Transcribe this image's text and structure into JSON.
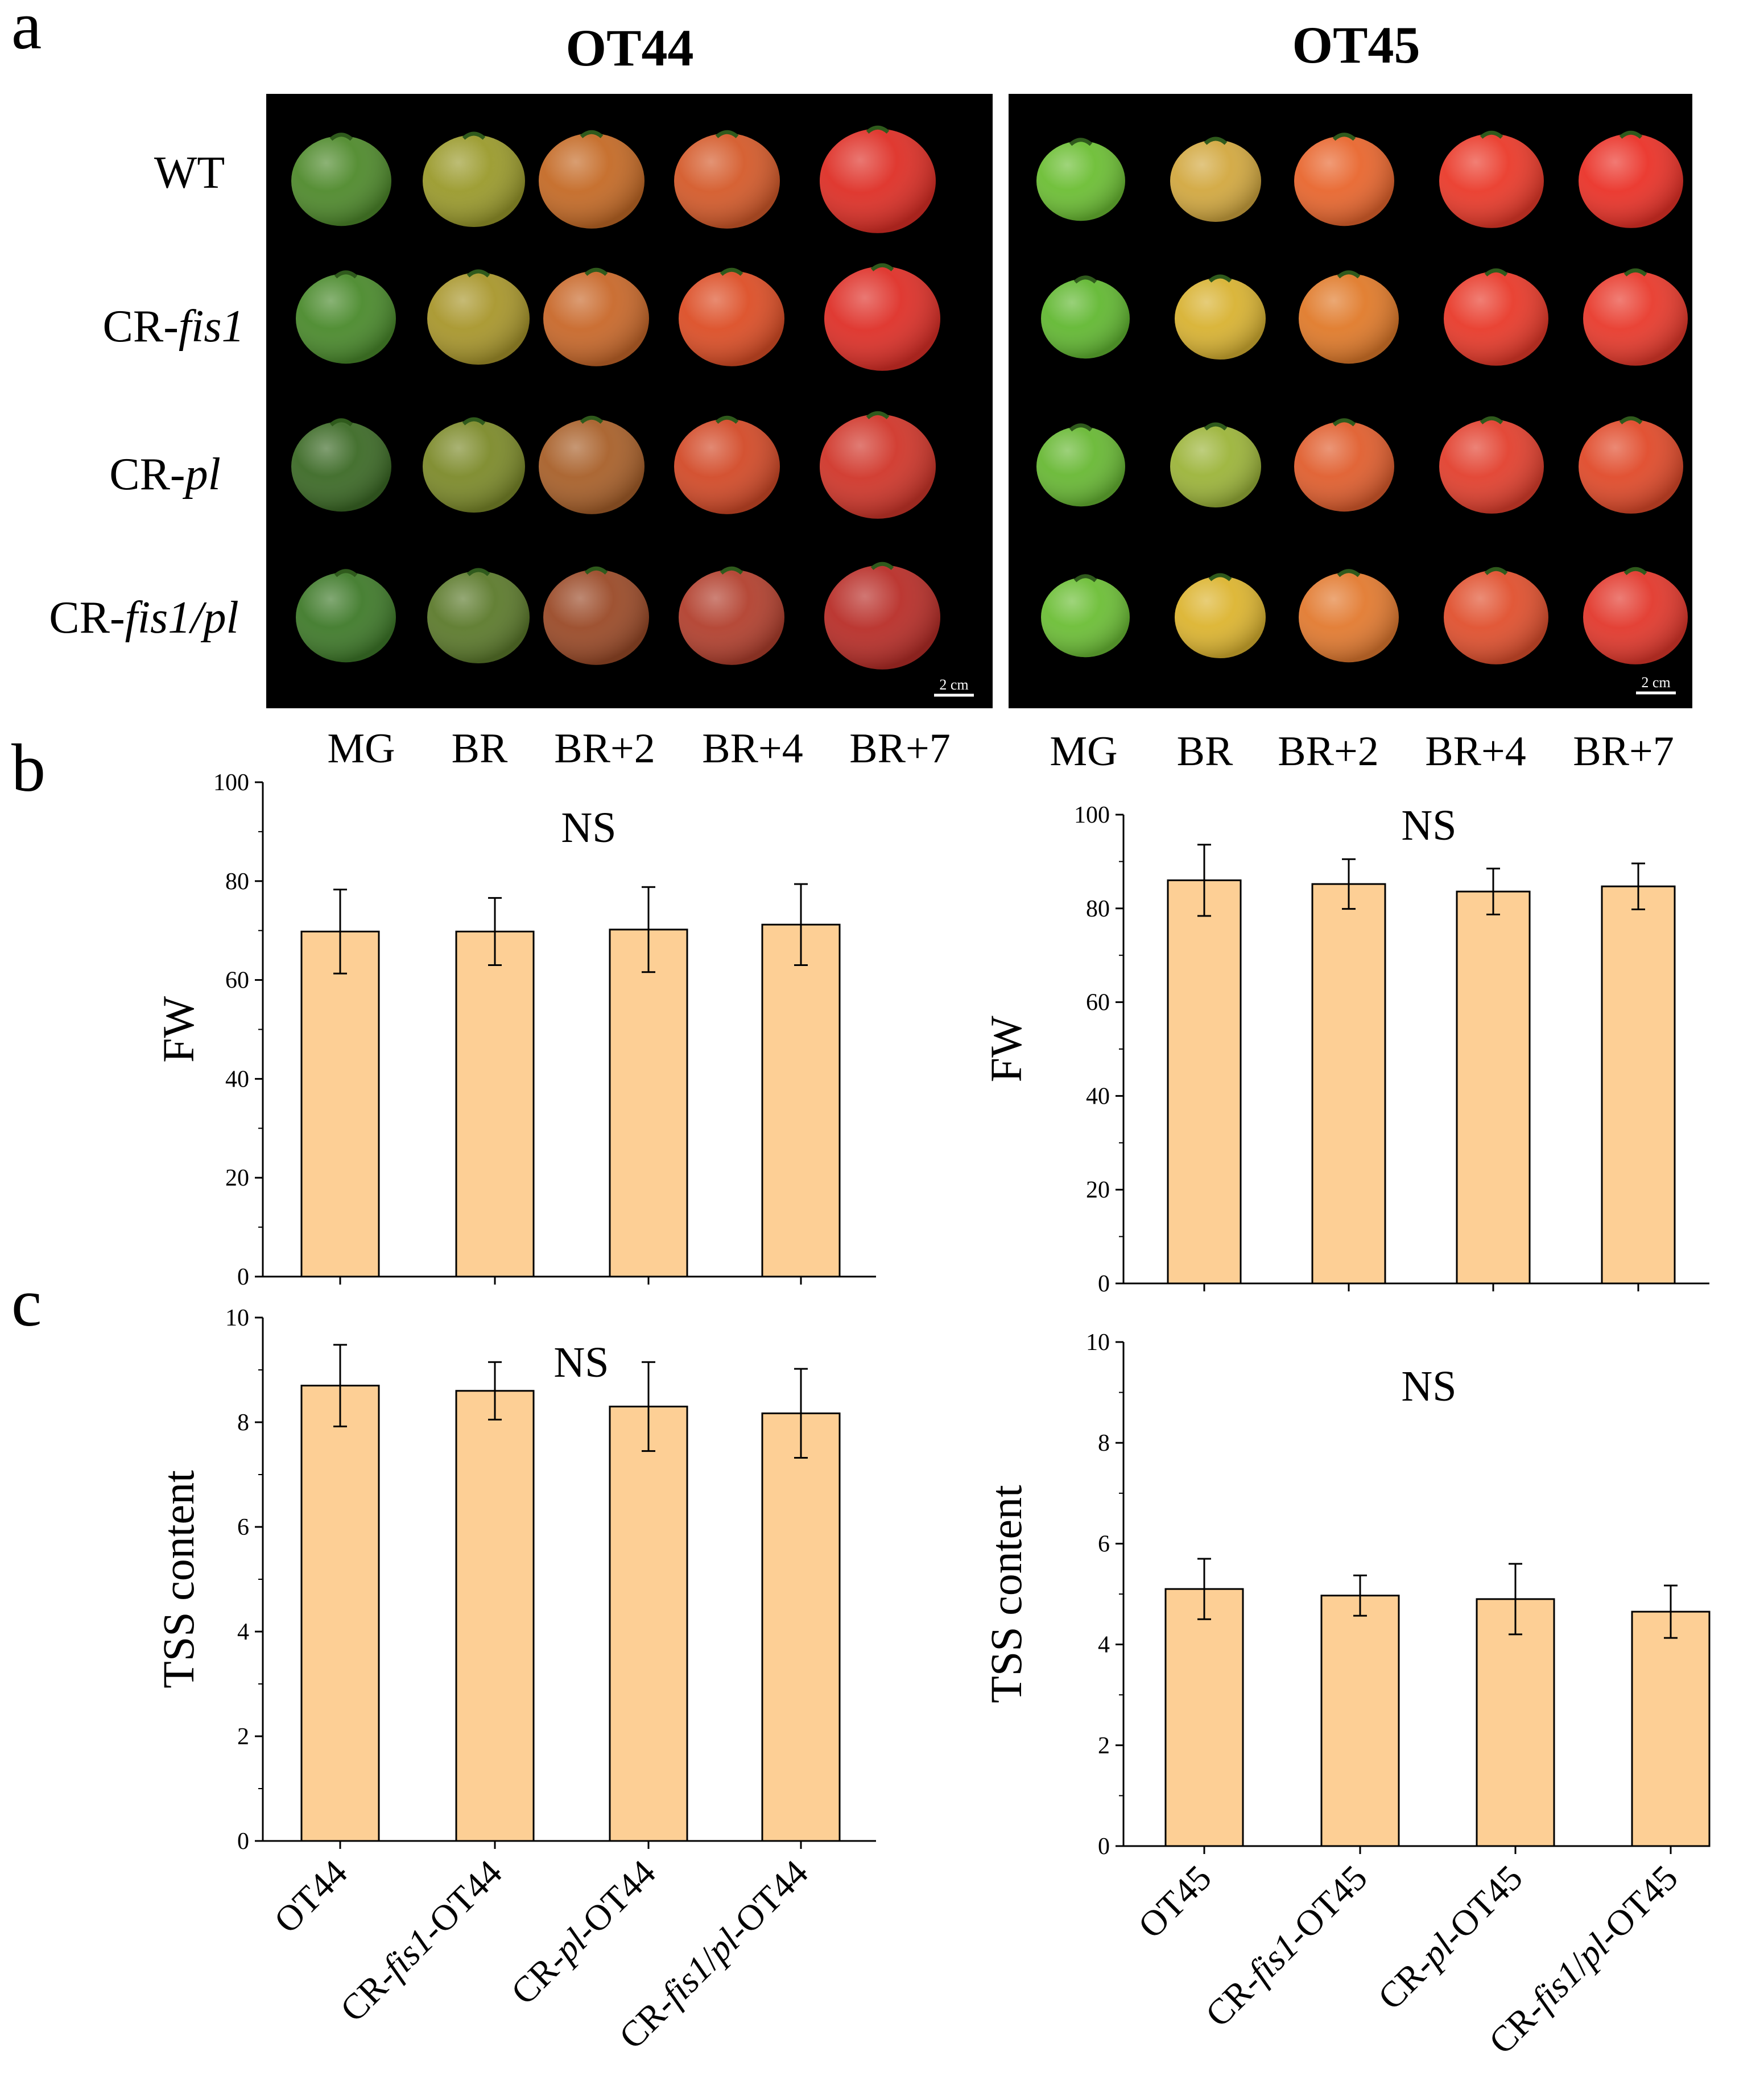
{
  "panels": {
    "a": "a",
    "b": "b",
    "c": "c"
  },
  "photo_panel": {
    "columns": [
      {
        "title": "OT44",
        "scale_bar": "2 cm"
      },
      {
        "title": "OT45",
        "scale_bar": "2 cm"
      }
    ],
    "row_labels": [
      [
        {
          "t": "WT",
          "i": false
        }
      ],
      [
        {
          "t": "CR-",
          "i": false
        },
        {
          "t": "fis1",
          "i": true
        }
      ],
      [
        {
          "t": "CR-",
          "i": false
        },
        {
          "t": "pl",
          "i": true
        }
      ],
      [
        {
          "t": "CR-",
          "i": false
        },
        {
          "t": "fis1/pl",
          "i": true
        }
      ]
    ],
    "stages": [
      "MG",
      "BR",
      "BR+2",
      "BR+4",
      "BR+7"
    ],
    "fruit_colors": [
      [
        [
          "#4f8a2c",
          "#9a9a2c",
          "#c46a26",
          "#d45a2a",
          "#de2f26"
        ],
        [
          "#4a8a2c",
          "#a8962c",
          "#c8682a",
          "#dc4e26",
          "#de3028"
        ],
        [
          "#3c6a26",
          "#7c8a2a",
          "#a8602a",
          "#d24a28",
          "#d0362a"
        ],
        [
          "#3f7a2a",
          "#5c7a2c",
          "#9a4a28",
          "#b2402e",
          "#b82e28"
        ]
      ],
      [
        [
          "#6cbe34",
          "#d2a840",
          "#e8662e",
          "#ea3a2a",
          "#ea3228"
        ],
        [
          "#62b832",
          "#d8b232",
          "#e07a2a",
          "#e83a2a",
          "#e83a2c"
        ],
        [
          "#68b834",
          "#9cb43a",
          "#e05e2e",
          "#e2402e",
          "#e04a2a"
        ],
        [
          "#6cbe36",
          "#dcb430",
          "#e27a30",
          "#e0502e",
          "#e2382c"
        ]
      ]
    ]
  },
  "chart_data": [
    {
      "type": "bar",
      "id": "b-left",
      "categories": [
        "OT44",
        "CR-fis1-OT44",
        "CR-pl-OT44",
        "CR-fis1/pl-OT44"
      ],
      "values": [
        69.8,
        69.8,
        70.2,
        71.2
      ],
      "errors": [
        8.5,
        6.8,
        8.6,
        8.2
      ],
      "ylabel": "FW",
      "ylim": [
        0,
        100
      ],
      "yticks": [
        "0",
        "20",
        "40",
        "60",
        "80",
        "100"
      ],
      "annotation": "NS",
      "bar_color": "#fdcf95"
    },
    {
      "type": "bar",
      "id": "b-right",
      "categories": [
        "OT45",
        "CR-fis1-OT45",
        "CR-pl-OT45",
        "CR-fis1/pl-OT45"
      ],
      "values": [
        86.0,
        85.2,
        83.6,
        84.7
      ],
      "errors": [
        7.6,
        5.3,
        4.9,
        4.9
      ],
      "ylabel": "FW",
      "ylim": [
        0,
        100
      ],
      "yticks": [
        "0",
        "20",
        "40",
        "60",
        "80",
        "100"
      ],
      "annotation": "NS",
      "bar_color": "#fdcf95"
    },
    {
      "type": "bar",
      "id": "c-left",
      "categories": [
        "OT44",
        "CR-fis1-OT44",
        "CR-pl-OT44",
        "CR-fis1/pl-OT44"
      ],
      "values": [
        8.7,
        8.6,
        8.3,
        8.17
      ],
      "errors": [
        0.78,
        0.55,
        0.85,
        0.85
      ],
      "ylabel": "TSS content",
      "ylim": [
        0,
        10
      ],
      "yticks": [
        "0",
        "2",
        "4",
        "6",
        "8",
        "10"
      ],
      "annotation": "NS",
      "bar_color": "#fdcf95"
    },
    {
      "type": "bar",
      "id": "c-right",
      "categories": [
        "OT45",
        "CR-fis1-OT45",
        "CR-pl-OT45",
        "CR-fis1/pl-OT45"
      ],
      "values": [
        5.1,
        4.97,
        4.9,
        4.65
      ],
      "errors": [
        0.6,
        0.4,
        0.7,
        0.52
      ],
      "ylabel": "TSS content",
      "ylim": [
        0,
        10
      ],
      "yticks": [
        "0",
        "2",
        "4",
        "6",
        "8",
        "10"
      ],
      "annotation": "NS",
      "bar_color": "#fdcf95"
    }
  ],
  "x_tick_labels": [
    [
      [
        {
          "t": "OT44",
          "i": false
        }
      ],
      [
        {
          "t": "CR-",
          "i": false
        },
        {
          "t": "fis1",
          "i": true
        },
        {
          "t": "-OT44",
          "i": false
        }
      ],
      [
        {
          "t": "CR-",
          "i": false
        },
        {
          "t": "pl",
          "i": true
        },
        {
          "t": "-OT44",
          "i": false
        }
      ],
      [
        {
          "t": "CR-",
          "i": false
        },
        {
          "t": "fis1",
          "i": true
        },
        {
          "t": "/",
          "i": false
        },
        {
          "t": "pl",
          "i": true
        },
        {
          "t": "-OT44",
          "i": false
        }
      ]
    ],
    [
      [
        {
          "t": "OT45",
          "i": false
        }
      ],
      [
        {
          "t": "CR-",
          "i": false
        },
        {
          "t": "fis1",
          "i": true
        },
        {
          "t": "-OT45",
          "i": false
        }
      ],
      [
        {
          "t": "CR-",
          "i": false
        },
        {
          "t": "pl",
          "i": true
        },
        {
          "t": "-OT45",
          "i": false
        }
      ],
      [
        {
          "t": "CR-",
          "i": false
        },
        {
          "t": "fis1",
          "i": true
        },
        {
          "t": "/",
          "i": false
        },
        {
          "t": "pl",
          "i": true
        },
        {
          "t": "-OT45",
          "i": false
        }
      ]
    ]
  ]
}
